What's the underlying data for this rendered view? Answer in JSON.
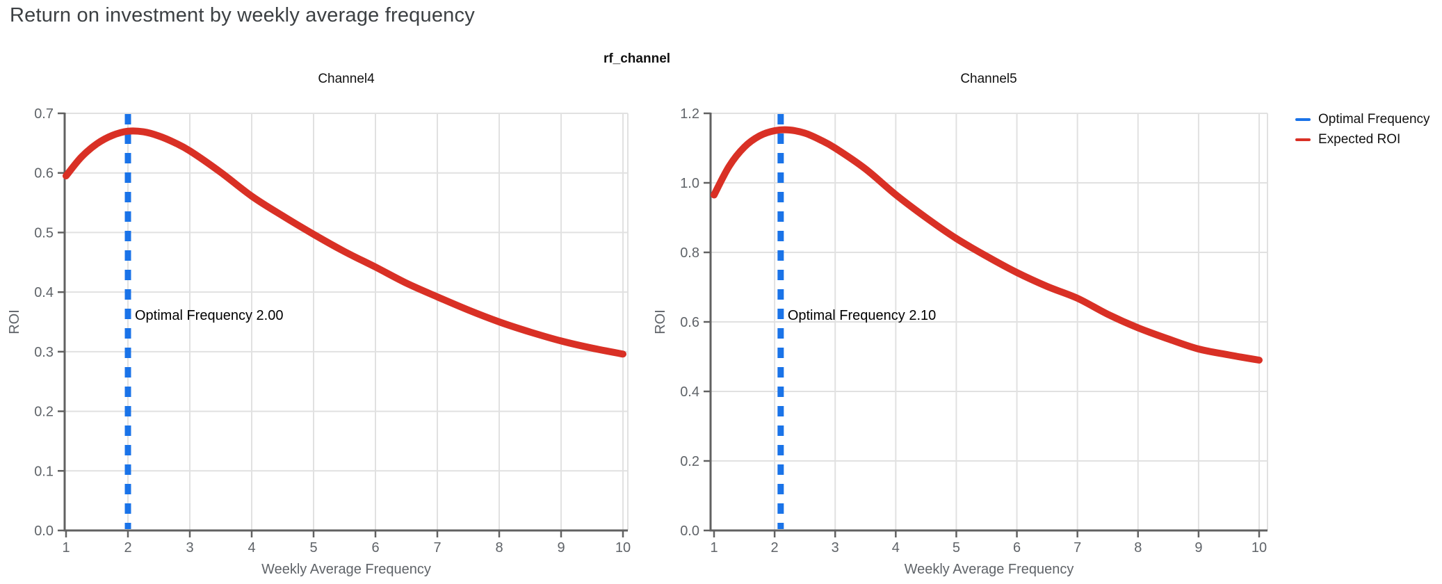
{
  "header": {
    "title": "Return on investment by weekly average frequency"
  },
  "colors": {
    "optimal_frequency": "#1a73e8",
    "expected_roi": "#d93025",
    "grid": "#e1e1e1",
    "axis": "#616161",
    "tick_label": "#5f6368",
    "title": "#3c4043",
    "annotation_text": "#000000"
  },
  "chart_data": {
    "type": "line",
    "title": "rf_channel",
    "subtitle_note": "faceted small-multiples line chart, one panel per rf_channel",
    "xlabel": "Weekly Average Frequency",
    "ylabel": "ROI",
    "grid": true,
    "legend": {
      "position": "top-right",
      "items": [
        {
          "label": "Optimal Frequency",
          "color": "#1a73e8",
          "style": "dashed-vertical-rule"
        },
        {
          "label": "Expected ROI",
          "color": "#d93025",
          "style": "solid-line"
        }
      ]
    },
    "x": [
      1,
      1.25,
      1.5,
      1.75,
      2,
      2.25,
      2.5,
      2.75,
      3,
      3.5,
      4,
      4.5,
      5,
      5.5,
      6,
      6.5,
      7,
      7.5,
      8,
      8.5,
      9,
      9.5,
      10
    ],
    "panels": [
      {
        "facet": "Channel4",
        "xlim": [
          1,
          10
        ],
        "xtick_step": 1,
        "ylim": [
          0,
          0.7
        ],
        "ytick_step": 0.1,
        "optimal_frequency": 2.0,
        "annotation": "Optimal Frequency  2.00",
        "expected_roi": [
          0.595,
          0.627,
          0.649,
          0.663,
          0.67,
          0.669,
          0.662,
          0.651,
          0.637,
          0.601,
          0.561,
          0.528,
          0.497,
          0.468,
          0.442,
          0.415,
          0.392,
          0.37,
          0.35,
          0.333,
          0.318,
          0.306,
          0.296
        ]
      },
      {
        "facet": "Channel5",
        "xlim": [
          1,
          10
        ],
        "xtick_step": 1,
        "ylim": [
          0,
          1.2
        ],
        "ytick_step": 0.2,
        "optimal_frequency": 2.1,
        "annotation": "Optimal Frequency  2.10",
        "expected_roi": [
          0.965,
          1.048,
          1.103,
          1.135,
          1.15,
          1.152,
          1.143,
          1.124,
          1.1,
          1.04,
          0.966,
          0.9,
          0.84,
          0.789,
          0.742,
          0.702,
          0.668,
          0.622,
          0.583,
          0.551,
          0.522,
          0.505,
          0.49
        ]
      }
    ]
  }
}
